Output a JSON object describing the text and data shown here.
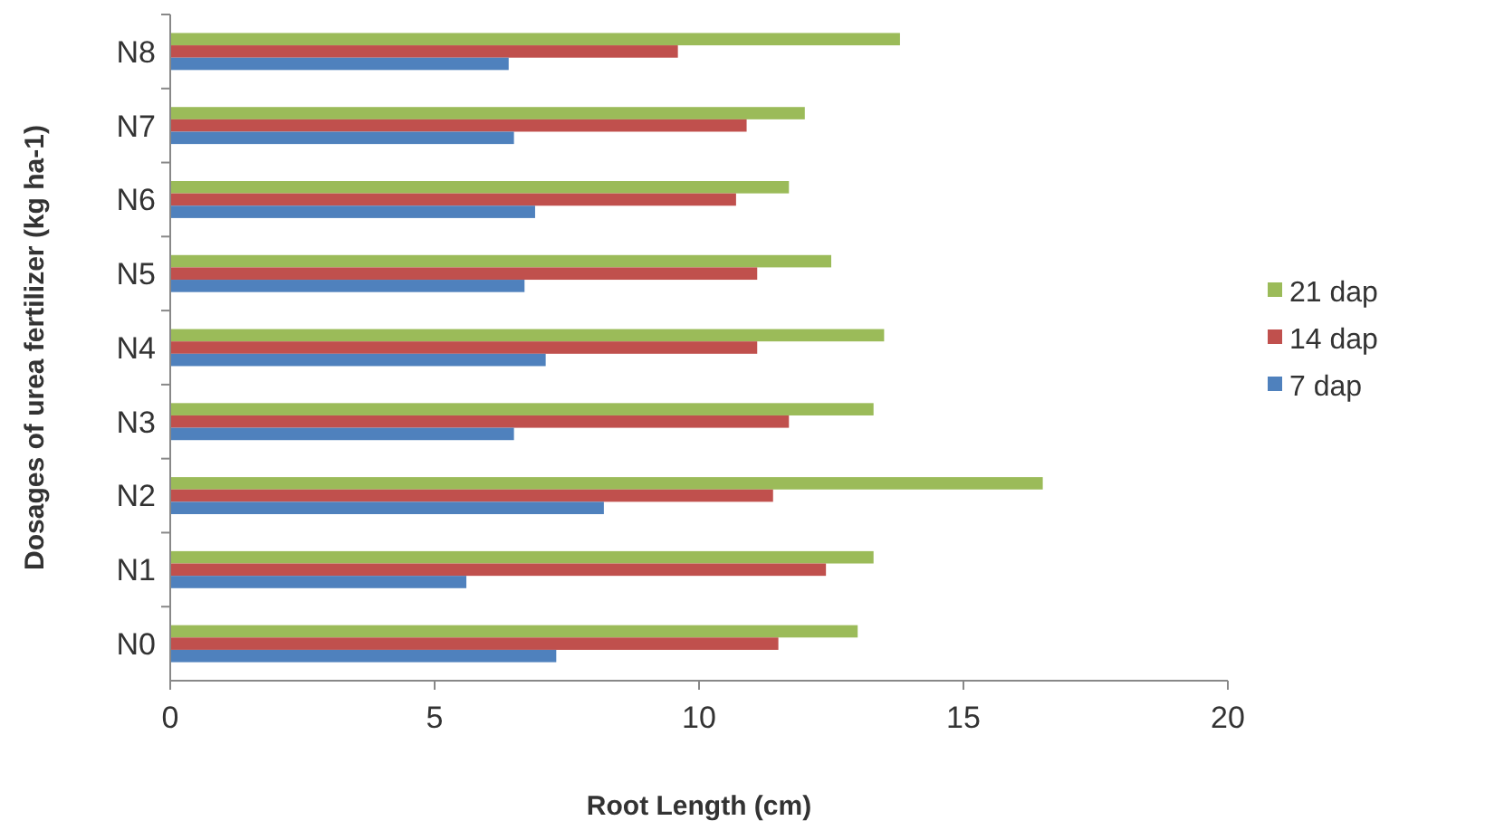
{
  "chart_data": {
    "type": "bar",
    "orientation": "horizontal",
    "xlabel": "Root Length (cm)",
    "ylabel": "Dosages of urea fertilizer (kg ha-1)",
    "categories": [
      "N8",
      "N7",
      "N6",
      "N5",
      "N4",
      "N3",
      "N2",
      "N1",
      "N0"
    ],
    "series": [
      {
        "name": "21 dap",
        "color": "#9bbb59",
        "values": [
          13.8,
          12.0,
          11.7,
          12.5,
          13.5,
          13.3,
          16.5,
          13.3,
          13.0
        ]
      },
      {
        "name": "14 dap",
        "color": "#c0504d",
        "values": [
          9.6,
          10.9,
          10.7,
          11.1,
          11.1,
          11.7,
          11.4,
          12.4,
          11.5
        ]
      },
      {
        "name": "7 dap",
        "color": "#4f81bd",
        "values": [
          6.4,
          6.5,
          6.9,
          6.7,
          7.1,
          6.5,
          8.2,
          5.6,
          7.3
        ]
      }
    ],
    "xlim": [
      0,
      20
    ],
    "xticks": [
      0,
      5,
      10,
      15,
      20
    ],
    "grid": false,
    "legend": "right"
  }
}
